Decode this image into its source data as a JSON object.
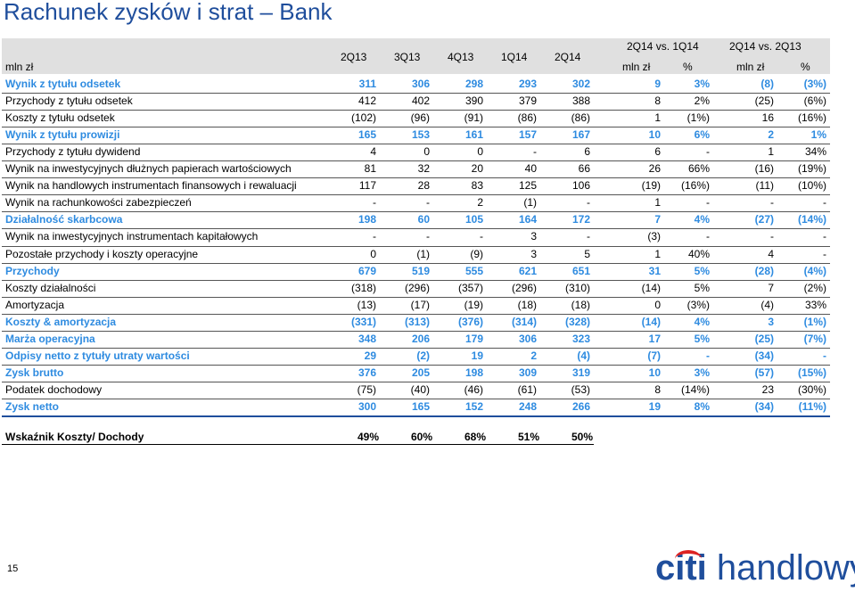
{
  "title": "Rachunek zysków i strat – Bank",
  "header": {
    "unit_label": "mln zł",
    "quarters": [
      "2Q13",
      "3Q13",
      "4Q13",
      "1Q14",
      "2Q14"
    ],
    "group1": "2Q14 vs. 1Q14",
    "group2": "2Q14 vs. 2Q13",
    "sub_mln1": "mln zł",
    "sub_pct1": "%",
    "sub_mln2": "mln zł",
    "sub_pct2": "%"
  },
  "rows": [
    {
      "label": "Wynik z tytułu odsetek",
      "highlight": true,
      "values": [
        "311",
        "306",
        "298",
        "293",
        "302",
        "9",
        "3%",
        "(8)",
        "(3%)"
      ]
    },
    {
      "label": "Przychody z tytułu odsetek",
      "highlight": false,
      "values": [
        "412",
        "402",
        "390",
        "379",
        "388",
        "8",
        "2%",
        "(25)",
        "(6%)"
      ]
    },
    {
      "label": "Koszty z tytułu odsetek",
      "highlight": false,
      "values": [
        "(102)",
        "(96)",
        "(91)",
        "(86)",
        "(86)",
        "1",
        "(1%)",
        "16",
        "(16%)"
      ]
    },
    {
      "label": "Wynik z tytułu prowizji",
      "highlight": true,
      "values": [
        "165",
        "153",
        "161",
        "157",
        "167",
        "10",
        "6%",
        "2",
        "1%"
      ]
    },
    {
      "label": "Przychody z tytułu dywidend",
      "highlight": false,
      "values": [
        "4",
        "0",
        "0",
        "-",
        "6",
        "6",
        "-",
        "1",
        "34%"
      ]
    },
    {
      "label": "Wynik na inwestycyjnych dłużnych papierach wartościowych",
      "highlight": false,
      "values": [
        "81",
        "32",
        "20",
        "40",
        "66",
        "26",
        "66%",
        "(16)",
        "(19%)"
      ]
    },
    {
      "label": "Wynik na handlowych instrumentach finansowych i rewaluacji",
      "highlight": false,
      "values": [
        "117",
        "28",
        "83",
        "125",
        "106",
        "(19)",
        "(16%)",
        "(11)",
        "(10%)"
      ]
    },
    {
      "label": "Wynik na rachunkowości zabezpieczeń",
      "highlight": false,
      "values": [
        "-",
        "-",
        "2",
        "(1)",
        "-",
        "1",
        "-",
        "-",
        "-"
      ]
    },
    {
      "label": "Działalność skarbcowa",
      "highlight": true,
      "values": [
        "198",
        "60",
        "105",
        "164",
        "172",
        "7",
        "4%",
        "(27)",
        "(14%)"
      ]
    },
    {
      "label": "Wynik na inwestycyjnych instrumentach kapitałowych",
      "highlight": false,
      "values": [
        "-",
        "-",
        "-",
        "3",
        "-",
        "(3)",
        "-",
        "-",
        "-"
      ]
    },
    {
      "label": "Pozostałe przychody i koszty operacyjne",
      "highlight": false,
      "values": [
        "0",
        "(1)",
        "(9)",
        "3",
        "5",
        "1",
        "40%",
        "4",
        "-"
      ]
    },
    {
      "label": "Przychody",
      "highlight": true,
      "values": [
        "679",
        "519",
        "555",
        "621",
        "651",
        "31",
        "5%",
        "(28)",
        "(4%)"
      ]
    },
    {
      "label": "Koszty działalności",
      "highlight": false,
      "values": [
        "(318)",
        "(296)",
        "(357)",
        "(296)",
        "(310)",
        "(14)",
        "5%",
        "7",
        "(2%)"
      ]
    },
    {
      "label": "Amortyzacja",
      "highlight": false,
      "values": [
        "(13)",
        "(17)",
        "(19)",
        "(18)",
        "(18)",
        "0",
        "(3%)",
        "(4)",
        "33%"
      ]
    },
    {
      "label": "Koszty & amortyzacja",
      "highlight": true,
      "values": [
        "(331)",
        "(313)",
        "(376)",
        "(314)",
        "(328)",
        "(14)",
        "4%",
        "3",
        "(1%)"
      ]
    },
    {
      "label": "Marża operacyjna",
      "highlight": true,
      "values": [
        "348",
        "206",
        "179",
        "306",
        "323",
        "17",
        "5%",
        "(25)",
        "(7%)"
      ]
    },
    {
      "label": "Odpisy netto z tytuły utraty wartości",
      "highlight": true,
      "values": [
        "29",
        "(2)",
        "19",
        "2",
        "(4)",
        "(7)",
        "-",
        "(34)",
        "-"
      ]
    },
    {
      "label": "Zysk brutto",
      "highlight": true,
      "values": [
        "376",
        "205",
        "198",
        "309",
        "319",
        "10",
        "3%",
        "(57)",
        "(15%)"
      ]
    },
    {
      "label": "Podatek dochodowy",
      "highlight": false,
      "values": [
        "(75)",
        "(40)",
        "(46)",
        "(61)",
        "(53)",
        "8",
        "(14%)",
        "23",
        "(30%)"
      ]
    },
    {
      "label": "Zysk netto",
      "highlight": true,
      "values": [
        "300",
        "165",
        "152",
        "248",
        "266",
        "19",
        "8%",
        "(34)",
        "(11%)"
      ]
    }
  ],
  "ratio": {
    "label": "Wskaźnik Koszty/ Dochody",
    "values": [
      "49%",
      "60%",
      "68%",
      "51%",
      "50%"
    ]
  },
  "page_number": "15",
  "logo": {
    "citi": "citi",
    "handlowy": " handlowy"
  },
  "colors": {
    "accent": "#2e8be0",
    "title": "#1f4e9c"
  }
}
